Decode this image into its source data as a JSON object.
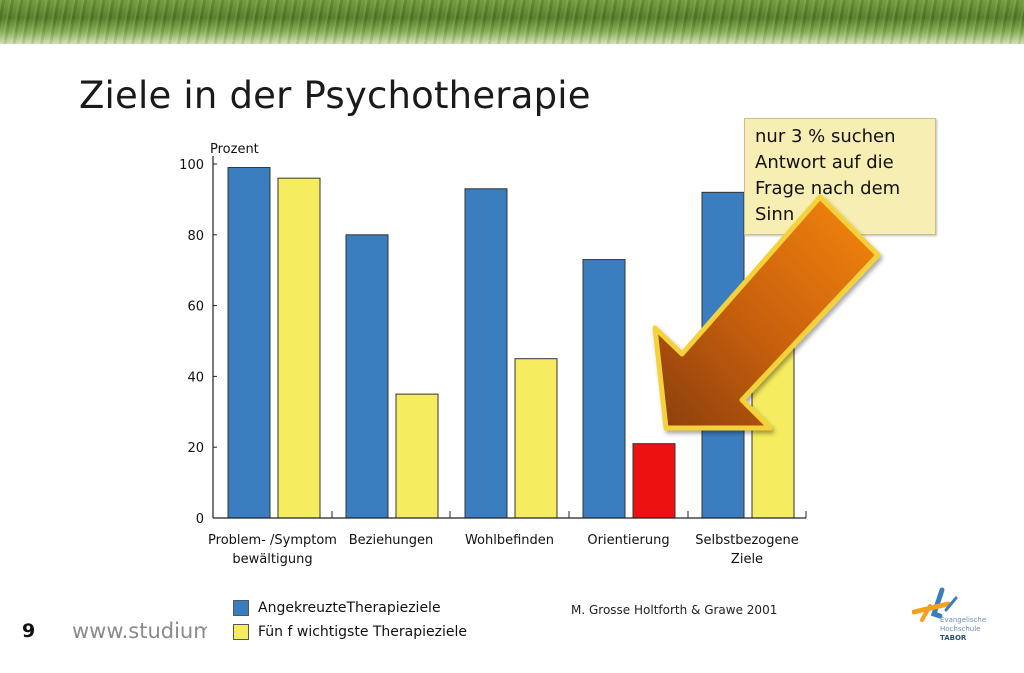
{
  "slide": {
    "title": "Ziele in der Psychotherapie",
    "page_number": "9",
    "website": "www.studium-religion",
    "source": "M. Grosse Holtforth & Grawe 2001",
    "callout": "nur 3 % suchen Antwort auf die Frage nach dem Sinn",
    "logo": {
      "line1": "Evangelische",
      "line2": "Hochschule",
      "line3": "TABOR"
    }
  },
  "colors": {
    "series_blue": "#3a7ebf",
    "series_yellow": "#f5ec5f",
    "highlight_red": "#ee1111",
    "arrow_orange": "#f08a1a",
    "arrow_brown": "#8a3e0a",
    "arrow_outline": "#f5d23a"
  },
  "chart_data": {
    "type": "bar",
    "ylabel": "Prozent",
    "ylim": [
      0,
      100
    ],
    "yticks": [
      0,
      20,
      40,
      60,
      80,
      100
    ],
    "categories": [
      [
        "Problem- /Symptom",
        "bewältigung"
      ],
      [
        "Beziehungen"
      ],
      [
        "Wohlbefinden"
      ],
      [
        "Orientierung"
      ],
      [
        "Selbstbezogene",
        "Ziele"
      ]
    ],
    "series": [
      {
        "name": "AngekreuzteTherapieziele",
        "color": "#3a7ebf",
        "values": [
          99,
          80,
          93,
          73,
          92
        ]
      },
      {
        "name": "Fün f wichtigste Therapieziele",
        "color": "#f5ec5f",
        "values": [
          96,
          35,
          45,
          21,
          60
        ],
        "highlight_index": 3,
        "highlight_color": "#ee1111"
      }
    ],
    "legend_position": "bottom-left",
    "grid": false
  }
}
